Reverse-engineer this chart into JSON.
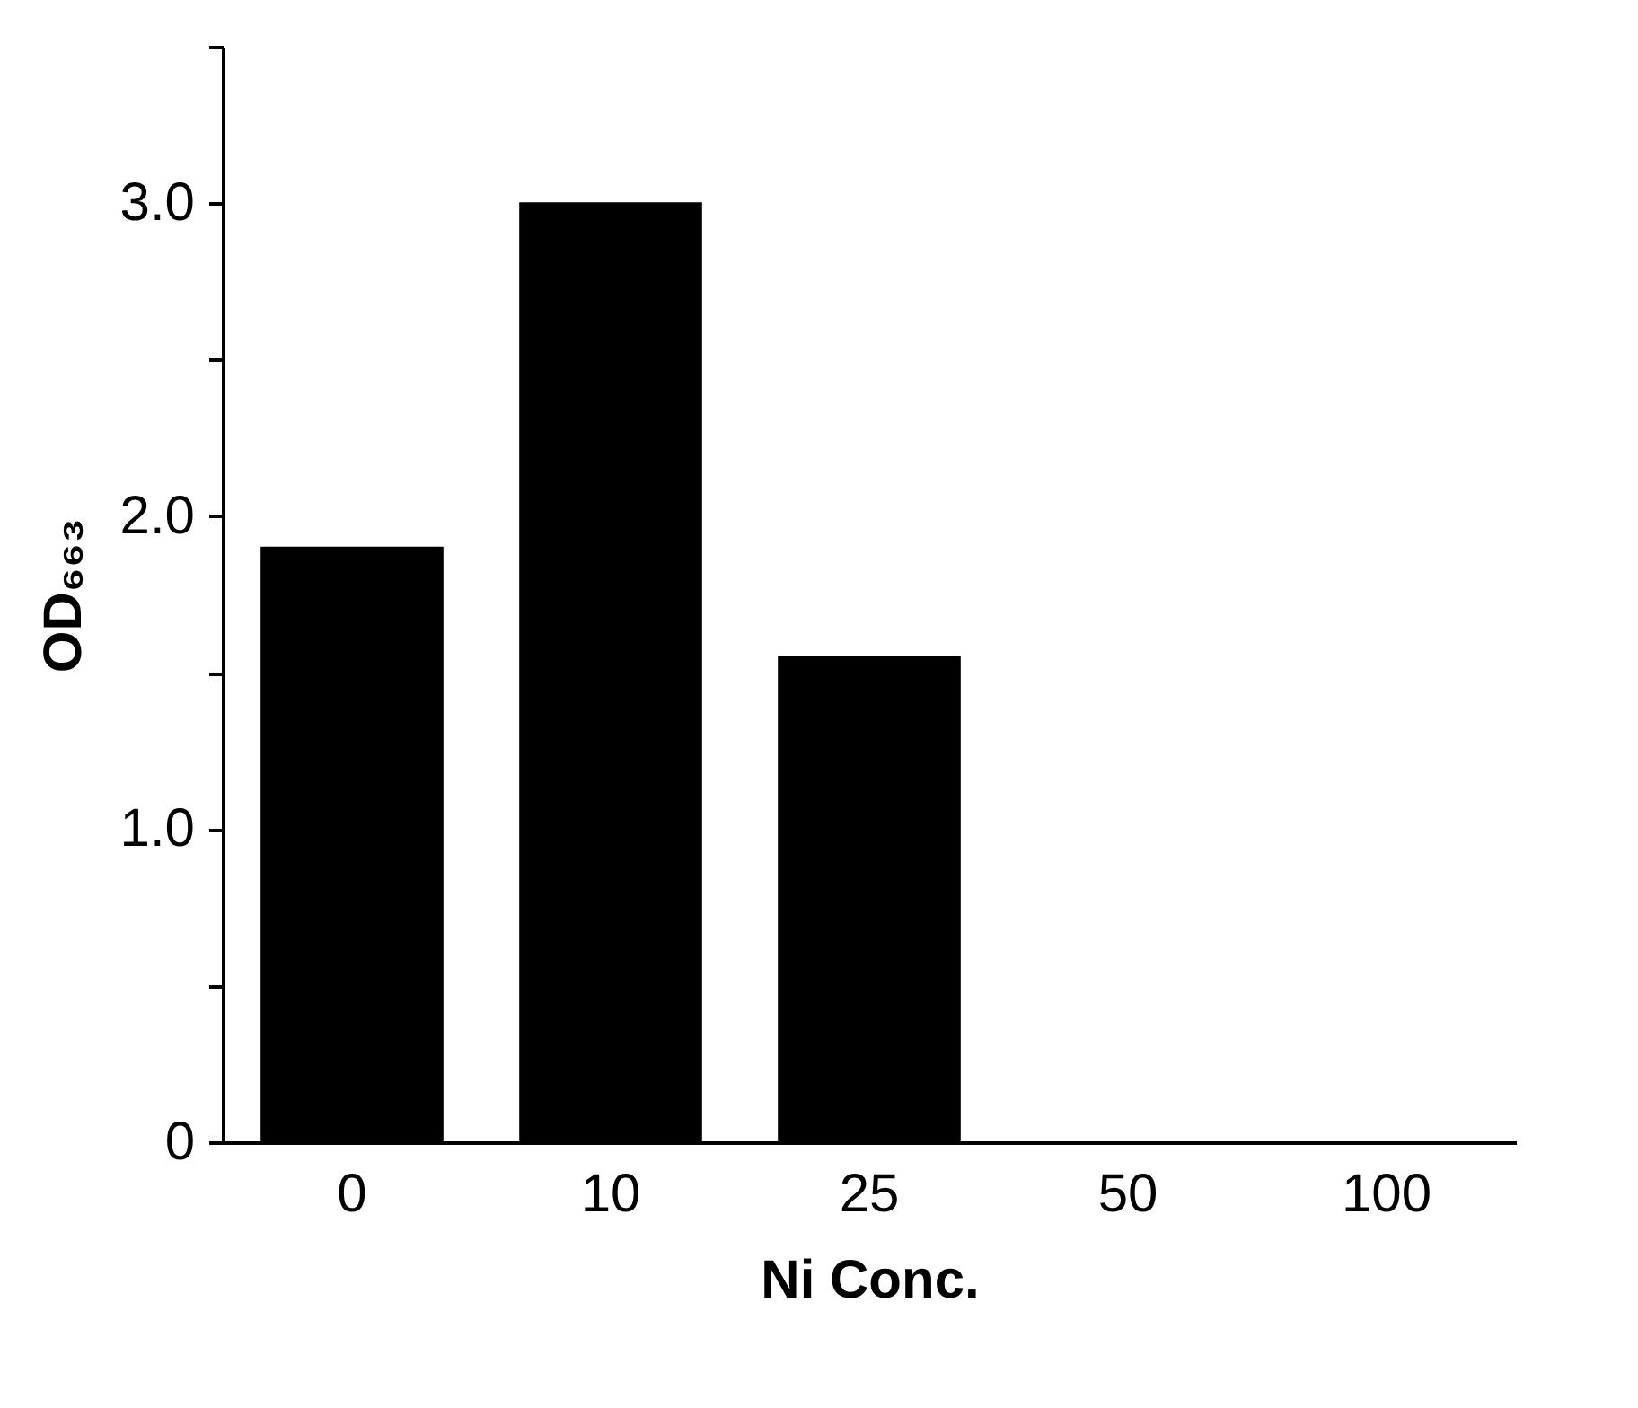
{
  "chart_data": {
    "type": "bar",
    "categories": [
      "0",
      "10",
      "25",
      "50",
      "100"
    ],
    "values": [
      1.9,
      3.0,
      1.55,
      0,
      0
    ],
    "color": "#000000",
    "xlabel": "Ni Conc.",
    "ylabel": "OD₆₆₃",
    "ylim": [
      0,
      3.5
    ],
    "yticks": [
      0,
      {
        "value": 0.5,
        "label": null
      },
      {
        "value": 1,
        "label": "1.0"
      },
      {
        "value": 1.5,
        "label": null
      },
      {
        "value": 2,
        "label": "2.0"
      },
      {
        "value": 2.5,
        "label": null
      },
      {
        "value": 3,
        "label": "3.0"
      },
      {
        "value": 3.5,
        "label": null
      }
    ]
  }
}
